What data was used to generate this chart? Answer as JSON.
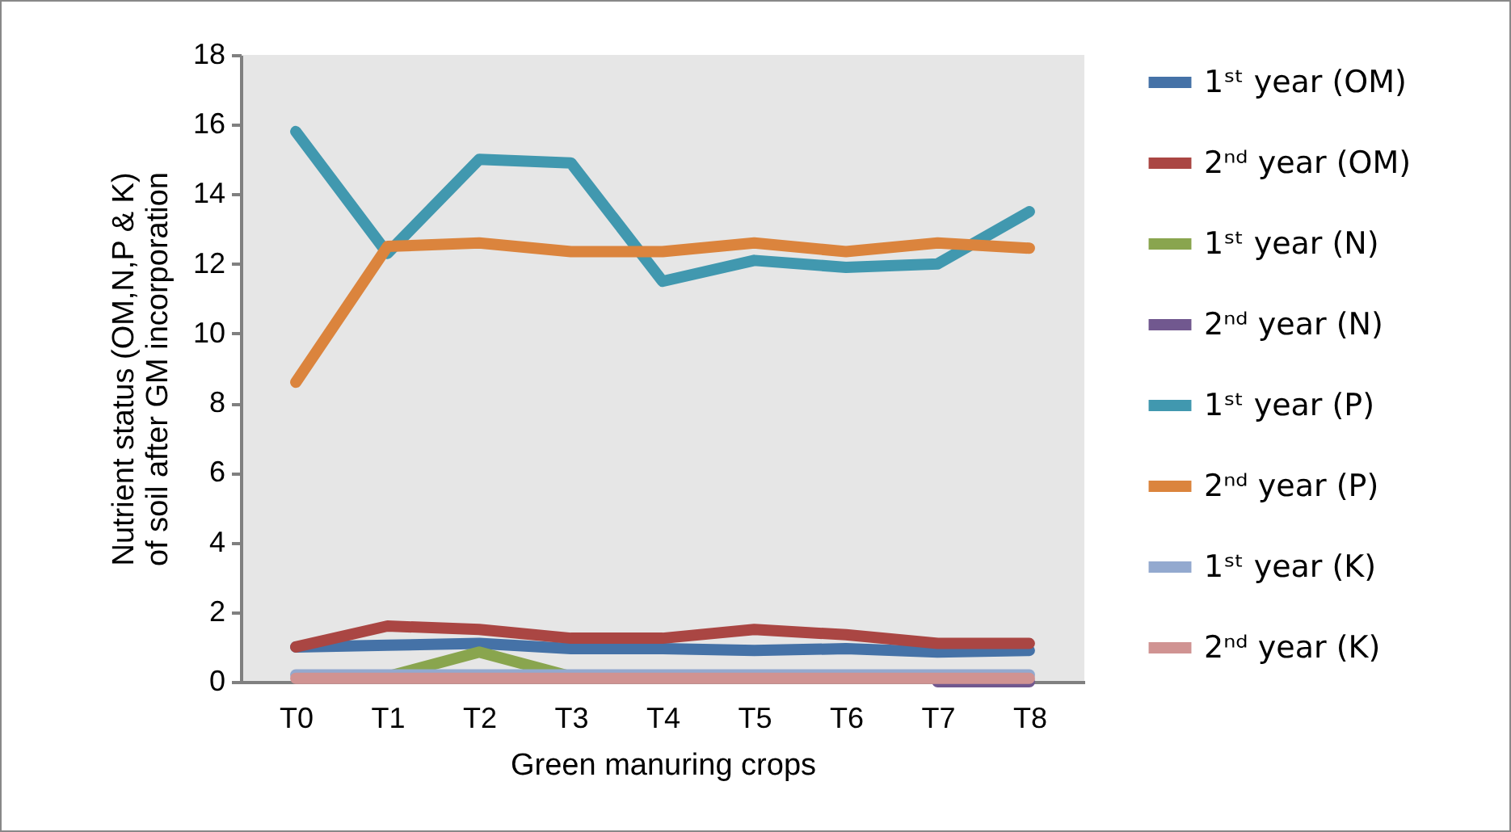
{
  "chart_data": {
    "type": "line",
    "xlabel": "Green manuring crops",
    "ylabel": "Nutrient status (OM,N,P & K) of soil after GM incorporation",
    "categories": [
      "T0",
      "T1",
      "T2",
      "T3",
      "T4",
      "T5",
      "T6",
      "T7",
      "T8"
    ],
    "ylim": [
      0,
      18
    ],
    "yticks": [
      0,
      2,
      4,
      6,
      8,
      10,
      12,
      14,
      16,
      18
    ],
    "grid": false,
    "legend": "right",
    "marker": "none",
    "line_style": "solid",
    "series": [
      {
        "name": "1ˢᵗ year (OM)",
        "color": "#4572a7",
        "values": [
          1.0,
          1.05,
          1.1,
          0.95,
          0.95,
          0.9,
          0.95,
          0.85,
          0.9
        ]
      },
      {
        "name": "2ⁿᵈ year (OM)",
        "color": "#aa4643",
        "values": [
          1.0,
          1.6,
          1.5,
          1.25,
          1.25,
          1.5,
          1.35,
          1.1,
          1.1
        ]
      },
      {
        "name": "1ˢᵗ year (N)",
        "color": "#89a54e",
        "values": [
          null,
          0.15,
          0.85,
          0.15,
          null,
          null,
          null,
          null,
          null
        ]
      },
      {
        "name": "2ⁿᵈ year (N)",
        "color": "#71588f",
        "values": [
          null,
          null,
          null,
          null,
          null,
          null,
          null,
          0,
          0
        ]
      },
      {
        "name": "1ˢᵗ year (P)",
        "color": "#4198af",
        "values": [
          15.8,
          12.3,
          15.0,
          14.9,
          11.5,
          12.1,
          11.9,
          12.0,
          13.5
        ]
      },
      {
        "name": "2ⁿᵈ year (P)",
        "color": "#db843d",
        "values": [
          8.6,
          12.5,
          12.6,
          12.35,
          12.35,
          12.6,
          12.35,
          12.6,
          12.45
        ]
      },
      {
        "name": "1ˢᵗ year (K)",
        "color": "#93a9cf",
        "values": [
          0.2,
          0.2,
          0.2,
          0.2,
          0.2,
          0.2,
          0.2,
          0.2,
          0.2
        ]
      },
      {
        "name": "2ⁿᵈ year (K)",
        "color": "#d09392",
        "values": [
          0.1,
          0.1,
          0.1,
          0.1,
          0.1,
          0.1,
          0.1,
          0.1,
          0.1
        ]
      }
    ]
  }
}
